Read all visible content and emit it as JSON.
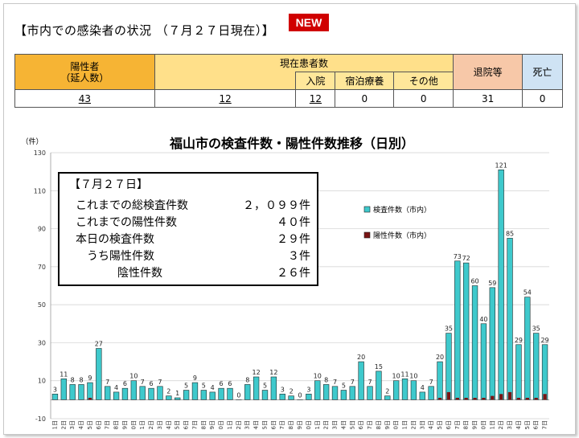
{
  "header": {
    "title": "【市内での感染者の状況 （７月２７日現在）】",
    "badge": "NEW"
  },
  "status_table": {
    "headers": {
      "positive": "陽性者\n（延人数）",
      "current_patients": "現在患者数",
      "hospitalized": "入院",
      "hotel": "宿泊療養",
      "other": "その他",
      "discharged": "退院等",
      "deaths": "死亡"
    },
    "values": {
      "positive": "43",
      "current_patients": "12",
      "hospitalized": "12",
      "hotel": "0",
      "other": "0",
      "discharged": "31",
      "deaths": "0"
    }
  },
  "summary": {
    "title": "【７月２７日】",
    "rows": [
      {
        "label": "これまでの総検査件数",
        "value": "２，０９９件"
      },
      {
        "label": "これまでの陽性件数",
        "value": "４０件"
      },
      {
        "label": "本日の検査件数",
        "value": "２９件"
      },
      {
        "label": "うち陽性件数",
        "value": "３件"
      },
      {
        "label": "陰性件数",
        "value": "２６件"
      }
    ]
  },
  "colors": {
    "tests": "#3ec9cc",
    "positives": "#7a1414",
    "badge": "#d00000",
    "positive_header": "#f6b434",
    "patients_header": "#ffe08a",
    "discharged_header": "#f7c8a8",
    "deaths_header": "#cfe3f4"
  },
  "chart_data": {
    "type": "bar",
    "title": "福山市の検査件数・陽性件数推移（日別）",
    "ylabel": "（件）",
    "ylim": [
      -10,
      130
    ],
    "yticks": [
      -10,
      10,
      30,
      50,
      70,
      90,
      110,
      130
    ],
    "grid": true,
    "legend_position": "right",
    "categories": [
      "6月1日",
      "6月2日",
      "6月3日",
      "6月4日",
      "6月5日",
      "6月6日",
      "6月7日",
      "6月8日",
      "6月9日",
      "6月10日",
      "6月11日",
      "6月12日",
      "6月13日",
      "6月14日",
      "6月15日",
      "6月16日",
      "6月17日",
      "6月18日",
      "6月19日",
      "6月20日",
      "6月21日",
      "6月22日",
      "6月23日",
      "6月24日",
      "6月25日",
      "6月26日",
      "6月27日",
      "6月28日",
      "6月29日",
      "6月30日",
      "7月1日",
      "7月2日",
      "7月3日",
      "7月4日",
      "7月5日",
      "7月6日",
      "7月7日",
      "7月8日",
      "7月9日",
      "7月10日",
      "7月11日",
      "7月12日",
      "7月13日",
      "7月14日",
      "7月15日",
      "7月16日",
      "7月17日",
      "7月18日",
      "7月19日",
      "7月20日",
      "7月21日",
      "7月22日",
      "7月23日",
      "7月24日",
      "7月25日",
      "7月26日",
      "7月27日"
    ],
    "series": [
      {
        "name": "検査件数（市内）",
        "values": [
          3,
          11,
          8,
          8,
          9,
          27,
          7,
          4,
          6,
          10,
          7,
          6,
          7,
          2,
          1,
          5,
          9,
          5,
          4,
          6,
          6,
          0,
          8,
          12,
          5,
          12,
          3,
          2,
          0,
          3,
          10,
          8,
          7,
          5,
          7,
          20,
          7,
          15,
          2,
          10,
          11,
          10,
          4,
          7,
          20,
          35,
          73,
          72,
          60,
          40,
          59,
          121,
          85,
          29,
          54,
          35,
          29
        ]
      },
      {
        "name": "陽性件数（市内）",
        "values": [
          0,
          0,
          0,
          0,
          1,
          0,
          0,
          0,
          0,
          0,
          0,
          0,
          0,
          0,
          0,
          0,
          0,
          0,
          0,
          0,
          0,
          0,
          0,
          0,
          0,
          0,
          0,
          0,
          0,
          0,
          0,
          0,
          0,
          0,
          0,
          0,
          0,
          0,
          0,
          0,
          0,
          0,
          0,
          0,
          1,
          4,
          1,
          1,
          1,
          1,
          2,
          3,
          4,
          1,
          1,
          1,
          3
        ]
      }
    ]
  }
}
